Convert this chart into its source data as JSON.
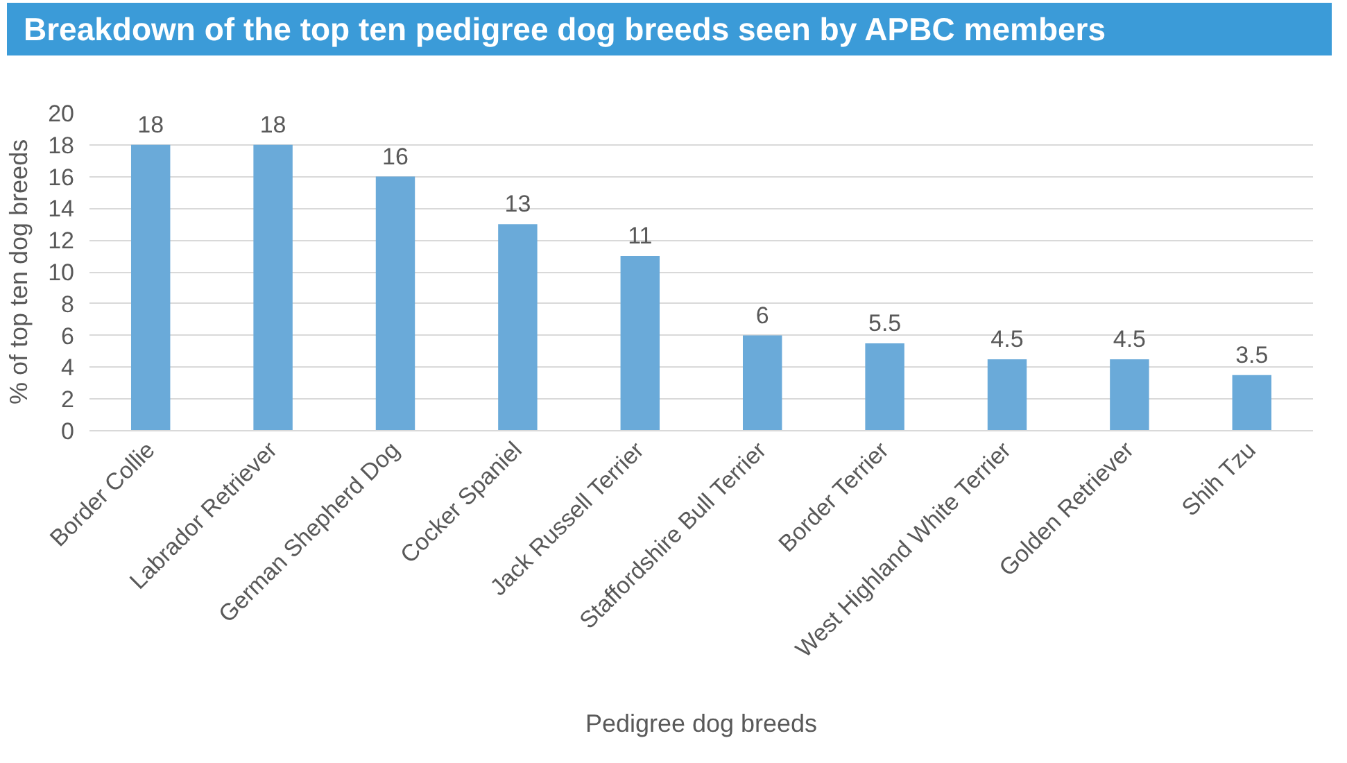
{
  "chart_data": {
    "type": "bar",
    "title": "Breakdown of the top ten pedigree dog breeds seen by APBC members",
    "xlabel": "Pedigree dog breeds",
    "ylabel": "% of top ten dog breeds",
    "categories": [
      "Border Collie",
      "Labrador Retriever",
      "German Shepherd Dog",
      "Cocker Spaniel",
      "Jack Russell Terrier",
      "Staffordshire Bull Terrier",
      "Border Terrier",
      "West Highland White Terrier",
      "Golden Retriever",
      "Shih Tzu"
    ],
    "values": [
      18,
      18,
      16,
      13,
      11,
      6,
      5.5,
      4.5,
      4.5,
      3.5
    ],
    "color": "#6aaad9",
    "ylim": [
      0,
      20
    ],
    "yticks": [
      0,
      2,
      4,
      6,
      8,
      10,
      12,
      14,
      16,
      18,
      20
    ],
    "grid": "y",
    "data_labels": true
  }
}
